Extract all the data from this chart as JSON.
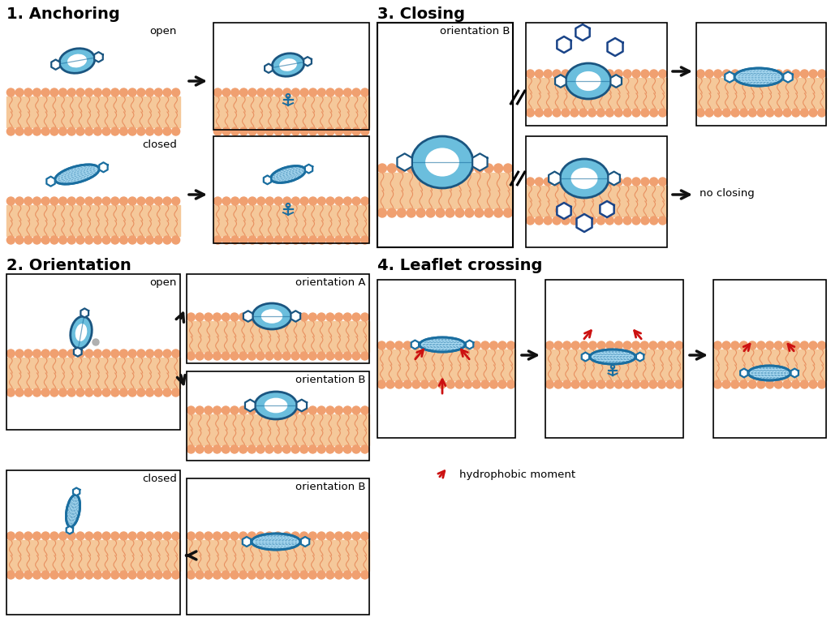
{
  "title_1": "1. Anchoring",
  "title_2": "2. Orientation",
  "title_3": "3. Closing",
  "title_4": "4. Leaflet crossing",
  "label_open": "open",
  "label_closed": "closed",
  "label_orientation_a": "orientation A",
  "label_orientation_b": "orientation B",
  "label_no_closing": "no closing",
  "label_hydrophobic": "hydrophobic moment",
  "bg_color": "#ffffff",
  "head_color": "#f0a070",
  "tail_color": "#f5c89a",
  "open_fill": "#6bbedd",
  "open_stroke": "#1a6ea0",
  "open_stroke_dark": "#1a5580",
  "closed_fill": "#a8d8f0",
  "closed_stroke": "#1a6ea0",
  "hex_color": "#1a4488",
  "arrow_color": "#111111",
  "red_color": "#cc1111",
  "anchor_color": "#1a6ea0",
  "font_size_title": 14,
  "font_size_label": 9.5,
  "font_size_small": 8.5
}
